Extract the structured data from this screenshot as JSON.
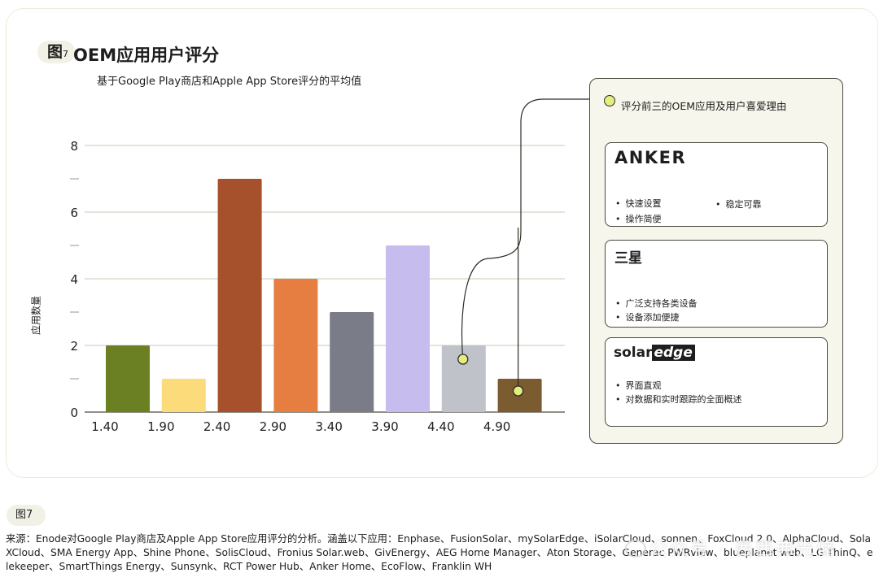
{
  "figure": {
    "tag": "图",
    "tag_num": "7",
    "title": "OEM应用用户评分",
    "subtitle": "基于Google Play商店和Apple App Store评分的平均值"
  },
  "chart_data": {
    "type": "bar",
    "title": "OEM应用用户评分",
    "subtitle": "基于Google Play商店和Apple App Store评分的平均值",
    "xlabel": "",
    "ylabel": "应用数量",
    "ylim": [
      0,
      8
    ],
    "yticks": [
      0,
      2,
      4,
      6,
      8
    ],
    "ytick_labels": [
      "0",
      "2",
      "4",
      "6",
      "8"
    ],
    "minor_yticks": [
      1,
      3,
      5,
      7
    ],
    "categories": [
      "1.40",
      "1.90",
      "2.40",
      "2.90",
      "3.40",
      "3.90",
      "4.40",
      "4.90"
    ],
    "values": [
      2,
      1,
      7,
      4,
      3,
      5,
      2,
      1
    ],
    "colors": [
      "#6b7f23",
      "#fcdc7a",
      "#a6502c",
      "#e67e42",
      "#7a7c88",
      "#c6bdee",
      "#bfc2c9",
      "#7b5c31"
    ],
    "grid": true,
    "highlighted_bins": [
      "4.40",
      "4.90"
    ],
    "marker_color": "#e4ee7f"
  },
  "callout": {
    "heading": "评分前三的OEM应用及用户喜爱理由",
    "cards": [
      {
        "brand": "ANKER",
        "points": [
          "快速设置",
          "稳定可靠",
          "操作简便"
        ]
      },
      {
        "brand": "三星",
        "points": [
          "广泛支持各类设备",
          "设备添加便捷"
        ]
      },
      {
        "brand_a": "solar",
        "brand_b": "edge",
        "points": [
          "界面直观",
          "对数据和实时跟踪的全面概述"
        ]
      }
    ]
  },
  "footer": {
    "tag": "图7",
    "source": "来源：Enode对Google Play商店及Apple App Store应用评分的分析。涵盖以下应用：Enphase、FusionSolar、mySolarEdge、iSolarCloud、sonnen、FoxCloud 2.0、AlphaCloud、SolaXCloud、SMA Energy App、Shine Phone、SolisCloud、Fronius Solar.web、GivEnergy、AEG Home Manager、Aton Storage、Generac PWRview、blueplanet web、LG ThinQ、elekeeper、SmartThings Energy、Sunsynk、RCT Power Hub、Anker Home、EcoFlow、Franklin WH",
    "watermark": "公众号 · 西西弗光储"
  }
}
